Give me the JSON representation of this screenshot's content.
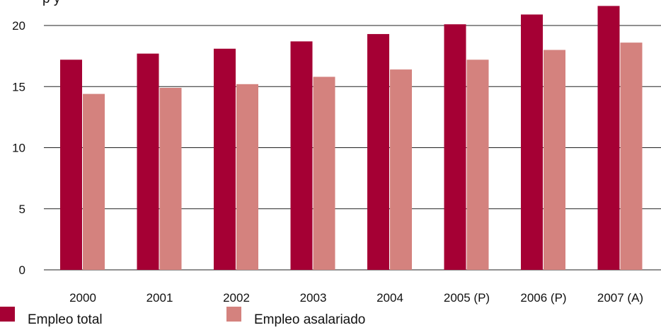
{
  "page": {
    "partial_title": "  p                    y"
  },
  "chart_data": {
    "type": "bar",
    "categories": [
      "2000",
      "2001",
      "2002",
      "2003",
      "2004",
      "2005 (P)",
      "2006 (P)",
      "2007 (A)"
    ],
    "series": [
      {
        "name": "Empleo total",
        "color": "#a50034",
        "values": [
          17.2,
          17.7,
          18.1,
          18.7,
          19.3,
          20.1,
          20.9,
          21.6
        ]
      },
      {
        "name": "Empleo asalariado",
        "color": "#d4827e",
        "values": [
          14.4,
          14.9,
          15.2,
          15.8,
          16.4,
          17.2,
          18.0,
          18.6
        ]
      }
    ],
    "yticks": [
      0,
      5,
      10,
      15,
      20
    ],
    "ylim": [
      0,
      22
    ],
    "grid": true,
    "legend_position": "bottom-left"
  }
}
